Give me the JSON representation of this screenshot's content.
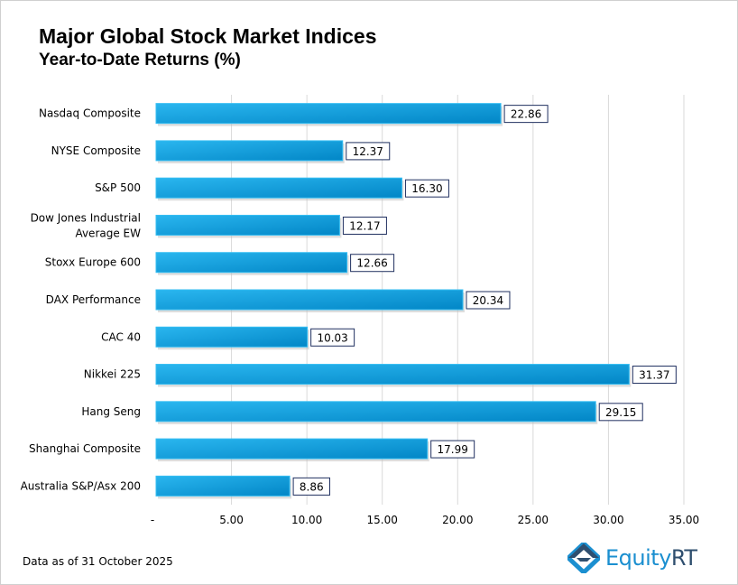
{
  "chart_data": {
    "type": "bar",
    "orientation": "horizontal",
    "title": "Major Global Stock Market Indices",
    "subtitle": "Year-to-Date Returns (%)",
    "categories": [
      "Nasdaq Composite",
      "NYSE Composite",
      "S&P 500",
      "Dow Jones Industrial Average EW",
      "Stoxx Europe 600",
      "DAX Performance",
      "CAC 40",
      "Nikkei 225",
      "Hang Seng",
      "Shanghai Composite",
      "Australia S&P/Asx 200"
    ],
    "values": [
      22.86,
      12.37,
      16.3,
      12.17,
      12.66,
      20.34,
      10.03,
      31.37,
      29.15,
      17.99,
      8.86
    ],
    "xlim": [
      0,
      35
    ],
    "xticks": [
      "-",
      "5.00",
      "10.00",
      "15.00",
      "20.00",
      "25.00",
      "30.00",
      "35.00"
    ],
    "grid": true,
    "bar_color": "#0fa6e4"
  },
  "footnote": "Data as of 31 October 2025",
  "logo": {
    "text": "Equity",
    "text_bold": "RT"
  }
}
